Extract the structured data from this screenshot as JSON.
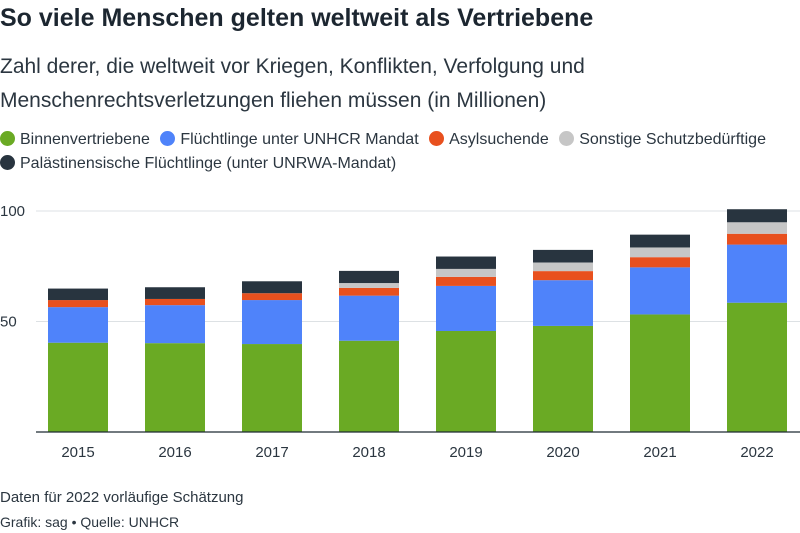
{
  "header": {
    "title": "So viele Menschen gelten weltweit als Vertriebene",
    "subtitle": "Zahl derer, die weltweit vor Kriegen, Konflikten, Verfolgung und Menschenrechtsverletzungen fliehen müssen (in Millionen)"
  },
  "legend": [
    {
      "label": "Binnenvertriebene",
      "color": "#6aaa24"
    },
    {
      "label": "Flüchtlinge unter UNHCR Mandat",
      "color": "#4f83fa"
    },
    {
      "label": "Asylsuchende",
      "color": "#e8501e"
    },
    {
      "label": "Sonstige Schutzbedürftige",
      "color": "#c6c6c6"
    },
    {
      "label": "Palästinensische Flüchtlinge (unter UNRWA-Mandat)",
      "color": "#28343f"
    }
  ],
  "chart_data": {
    "type": "bar",
    "stacked": true,
    "categories": [
      "2015",
      "2016",
      "2017",
      "2018",
      "2019",
      "2020",
      "2021",
      "2022"
    ],
    "series": [
      {
        "name": "Binnenvertriebene",
        "color": "#6aaa24",
        "values": [
          40.4,
          40.2,
          39.8,
          41.3,
          45.7,
          48.0,
          53.2,
          58.5
        ]
      },
      {
        "name": "Flüchtlinge unter UNHCR Mandat",
        "color": "#4f83fa",
        "values": [
          16.1,
          17.2,
          19.9,
          20.4,
          20.4,
          20.7,
          21.3,
          26.3
        ]
      },
      {
        "name": "Asylsuchende",
        "color": "#e8501e",
        "values": [
          3.2,
          2.8,
          3.1,
          3.5,
          4.1,
          4.1,
          4.6,
          4.9
        ]
      },
      {
        "name": "Sonstige Schutzbedürftige",
        "color": "#c6c6c6",
        "values": [
          0,
          0,
          0,
          2.2,
          3.6,
          3.9,
          4.4,
          5.2
        ]
      },
      {
        "name": "Palästinensische Flüchtlinge (unter UNRWA-Mandat)",
        "color": "#28343f",
        "values": [
          5.2,
          5.3,
          5.4,
          5.5,
          5.6,
          5.7,
          5.8,
          5.9
        ]
      }
    ],
    "yticks": [
      50,
      100
    ],
    "ylim": [
      0,
      100
    ],
    "grid": true,
    "legend_position": "top"
  },
  "footer": {
    "note": "Daten für 2022 vorläufige Schätzung",
    "source": "Grafik: sag • Quelle: UNHCR"
  }
}
